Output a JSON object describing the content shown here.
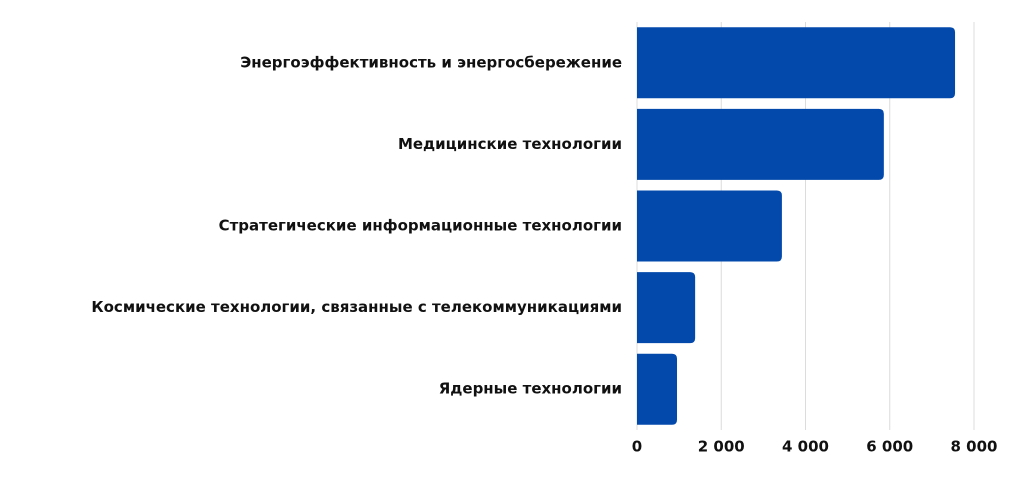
{
  "chart_data": {
    "type": "bar",
    "orientation": "horizontal",
    "categories": [
      "Энергоэффективность и энергосбережение",
      "Медицинские технологии",
      "Стратегические информационные технологии",
      "Космические технологии, связанные с телекоммуникациями",
      "Ядерные технологии"
    ],
    "values": [
      7550,
      5860,
      3440,
      1380,
      950
    ],
    "color": "#0349ac",
    "xlim": [
      0,
      8000
    ],
    "xticks": [
      0,
      {
        "value": 2000,
        "label": "2 000"
      },
      {
        "value": 4000,
        "label": "4 000"
      },
      {
        "value": 6000,
        "label": "6 000"
      },
      {
        "value": 8000,
        "label": "8 000"
      }
    ],
    "grid": true
  }
}
